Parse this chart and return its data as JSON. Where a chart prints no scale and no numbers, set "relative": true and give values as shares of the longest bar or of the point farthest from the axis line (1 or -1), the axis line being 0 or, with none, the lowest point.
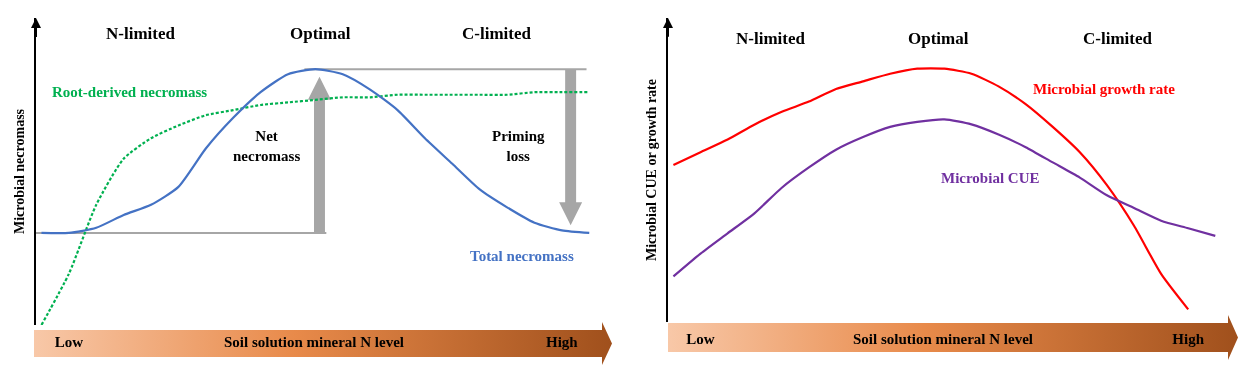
{
  "chart_data": [
    {
      "type": "line",
      "relative": true,
      "ylabel": "Microbial necromass",
      "xlabel": "Soil solution mineral N level",
      "legend": false,
      "grid": false,
      "marker": "none",
      "categories": [
        null,
        "Low",
        null,
        null,
        null,
        null,
        null,
        null,
        null,
        null,
        null,
        null,
        null,
        null,
        null,
        null,
        null,
        null,
        null,
        "High",
        null
      ],
      "series": [
        {
          "name": "Root-derived necromass",
          "color": "#00b050",
          "line_style": "dotted",
          "values": [
            0,
            0.2,
            0.47,
            0.65,
            0.73,
            0.78,
            0.82,
            0.84,
            0.86,
            0.87,
            0.88,
            0.89,
            0.89,
            0.9,
            0.9,
            0.9,
            0.9,
            0.9,
            0.91,
            0.91,
            0.91
          ]
        },
        {
          "name": "Total necromass",
          "color": "#4472c4",
          "line_style": "solid",
          "values": [
            0.36,
            0.36,
            0.38,
            0.43,
            0.47,
            0.54,
            0.69,
            0.81,
            0.91,
            0.98,
            1,
            0.98,
            0.92,
            0.84,
            0.73,
            0.63,
            0.53,
            0.46,
            0.4,
            0.37,
            0.36
          ]
        }
      ],
      "ref_lines": [
        {
          "axis": "y",
          "value": 0.36,
          "color": "#a6a6a6"
        },
        {
          "axis": "y",
          "value": 1,
          "color": "#a6a6a6"
        }
      ],
      "annotations": [
        "N-limited",
        "Optimal",
        "C-limited",
        "Net\nnecromass",
        "Priming\nloss"
      ]
    },
    {
      "type": "line",
      "relative": true,
      "ylabel": "Microbial CUE or growth rate",
      "xlabel": "Soil solution mineral N level",
      "legend": false,
      "grid": false,
      "marker": "none",
      "categories": [
        null,
        "Low",
        null,
        null,
        null,
        null,
        null,
        null,
        null,
        null,
        null,
        null,
        null,
        null,
        null,
        null,
        null,
        null,
        null,
        "High",
        null
      ],
      "series": [
        {
          "name": "Microbial growth rate",
          "color": "#ff0000",
          "line_style": "solid",
          "values": [
            0.62,
            0.67,
            0.72,
            0.78,
            0.83,
            0.87,
            0.92,
            0.95,
            0.98,
            1,
            1,
            0.98,
            0.93,
            0.86,
            0.77,
            0.67,
            0.54,
            0.38,
            0.19,
            0.05,
            null
          ]
        },
        {
          "name": "Microbial CUE",
          "color": "#7030a0",
          "line_style": "solid",
          "values": [
            0.18,
            0.27,
            0.35,
            0.43,
            0.53,
            0.61,
            0.68,
            0.73,
            0.77,
            0.79,
            0.8,
            0.78,
            0.74,
            0.69,
            0.63,
            0.57,
            0.5,
            0.45,
            0.4,
            0.37,
            0.34
          ]
        }
      ],
      "annotations": [
        "N-limited",
        "Optimal",
        "C-limited"
      ]
    }
  ]
}
